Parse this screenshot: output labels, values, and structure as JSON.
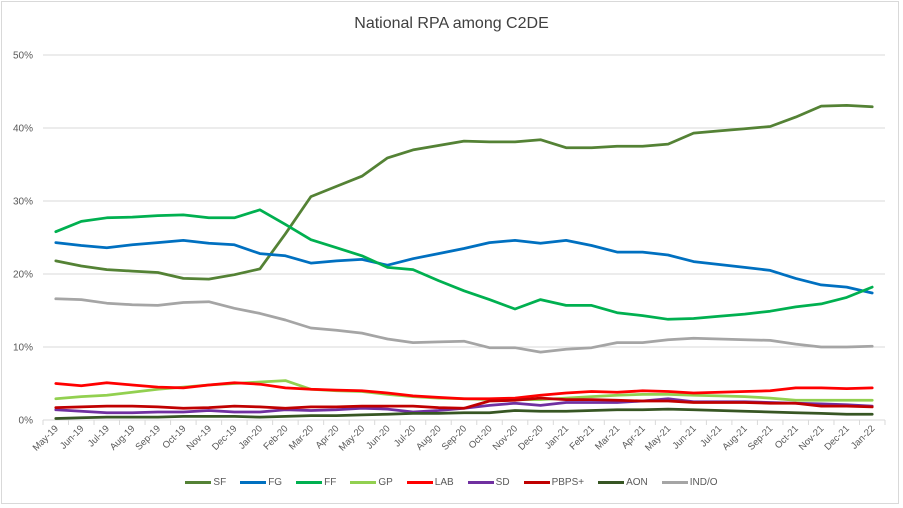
{
  "chart_data": {
    "type": "line",
    "title": "National RPA among C2DE",
    "xlabel": "",
    "ylabel": "",
    "ylim": [
      0,
      50
    ],
    "yticks": [
      "0%",
      "10%",
      "20%",
      "30%",
      "40%",
      "50%"
    ],
    "ytick_values": [
      0,
      10,
      20,
      30,
      40,
      50
    ],
    "grid": true,
    "legend_position": "bottom",
    "categories": [
      "May-19",
      "Jun-19",
      "Jul-19",
      "Aug-19",
      "Sep-19",
      "Oct-19",
      "Nov-19",
      "Dec-19",
      "Jan-20",
      "Feb-20",
      "Mar-20",
      "Apr-20",
      "May-20",
      "Jun-20",
      "Jul-20",
      "Aug-20",
      "Sep-20",
      "Oct-20",
      "Nov-20",
      "Dec-20",
      "Jan-21",
      "Feb-21",
      "Mar-21",
      "Apr-21",
      "May-21",
      "Jun-21",
      "Jul-21",
      "Aug-21",
      "Sep-21",
      "Oct-21",
      "Nov-21",
      "Dec-21",
      "Jan-22"
    ],
    "series": [
      {
        "name": "SF",
        "color": "#548235",
        "values": [
          21.8,
          21.1,
          20.6,
          20.4,
          20.2,
          19.4,
          19.3,
          19.9,
          20.7,
          25.5,
          30.6,
          32.0,
          33.4,
          35.9,
          37.0,
          37.6,
          38.2,
          38.1,
          38.1,
          38.4,
          37.3,
          37.3,
          37.5,
          37.5,
          37.8,
          39.3,
          39.6,
          39.9,
          40.2,
          41.5,
          43.0,
          43.1,
          42.9
        ]
      },
      {
        "name": "FG",
        "color": "#0070C0",
        "values": [
          24.3,
          23.9,
          23.6,
          24.0,
          24.3,
          24.6,
          24.2,
          24.0,
          22.8,
          22.5,
          21.5,
          21.8,
          22.0,
          21.2,
          22.1,
          22.8,
          23.5,
          24.3,
          24.6,
          24.2,
          24.6,
          23.9,
          23.0,
          23.0,
          22.6,
          21.7,
          21.3,
          20.9,
          20.5,
          19.4,
          18.5,
          18.2,
          17.4
        ]
      },
      {
        "name": "FF",
        "color": "#00B050",
        "values": [
          25.8,
          27.2,
          27.7,
          27.8,
          28.0,
          28.1,
          27.7,
          27.7,
          28.8,
          26.8,
          24.7,
          23.6,
          22.5,
          20.9,
          20.6,
          19.1,
          17.7,
          16.5,
          15.2,
          16.5,
          15.7,
          15.7,
          14.7,
          14.3,
          13.8,
          13.9,
          14.2,
          14.5,
          14.9,
          15.5,
          15.9,
          16.8,
          18.2
        ]
      },
      {
        "name": "GP",
        "color": "#92D050",
        "values": [
          2.9,
          3.2,
          3.4,
          3.8,
          4.2,
          4.5,
          4.8,
          5.0,
          5.2,
          5.4,
          4.2,
          4.0,
          3.9,
          3.5,
          3.2,
          3.0,
          2.9,
          2.8,
          2.8,
          2.8,
          3.0,
          3.2,
          3.4,
          3.5,
          3.5,
          3.4,
          3.3,
          3.2,
          3.0,
          2.7,
          2.7,
          2.7,
          2.7
        ]
      },
      {
        "name": "LAB",
        "color": "#FF0000",
        "values": [
          5.0,
          4.7,
          5.1,
          4.8,
          4.5,
          4.4,
          4.8,
          5.1,
          4.9,
          4.4,
          4.2,
          4.1,
          4.0,
          3.7,
          3.3,
          3.1,
          2.9,
          2.9,
          3.0,
          3.4,
          3.7,
          3.9,
          3.8,
          4.0,
          3.9,
          3.7,
          3.8,
          3.9,
          4.0,
          4.4,
          4.4,
          4.3,
          4.4
        ]
      },
      {
        "name": "SD",
        "color": "#7030A0",
        "values": [
          1.4,
          1.2,
          1.0,
          1.0,
          1.1,
          1.1,
          1.3,
          1.1,
          1.1,
          1.4,
          1.3,
          1.4,
          1.6,
          1.5,
          1.1,
          1.3,
          1.6,
          2.0,
          2.3,
          2.0,
          2.4,
          2.4,
          2.4,
          2.6,
          2.9,
          2.5,
          2.5,
          2.5,
          2.4,
          2.3,
          2.2,
          2.1,
          1.9
        ]
      },
      {
        "name": "PBPS+",
        "color": "#C00000",
        "values": [
          1.7,
          1.8,
          1.9,
          1.9,
          1.8,
          1.6,
          1.7,
          1.9,
          1.8,
          1.6,
          1.8,
          1.8,
          1.9,
          1.9,
          1.9,
          1.7,
          1.6,
          2.6,
          2.7,
          3.0,
          2.8,
          2.8,
          2.7,
          2.6,
          2.6,
          2.4,
          2.4,
          2.4,
          2.3,
          2.3,
          1.9,
          1.9,
          1.8
        ]
      },
      {
        "name": "AON",
        "color": "#375623",
        "values": [
          0.2,
          0.3,
          0.4,
          0.4,
          0.4,
          0.5,
          0.5,
          0.5,
          0.4,
          0.5,
          0.6,
          0.6,
          0.7,
          0.8,
          0.9,
          0.9,
          1.0,
          1.0,
          1.3,
          1.2,
          1.2,
          1.3,
          1.4,
          1.4,
          1.5,
          1.4,
          1.3,
          1.2,
          1.1,
          1.0,
          0.9,
          0.8,
          0.8
        ]
      },
      {
        "name": "IND/O",
        "color": "#A5A5A5",
        "values": [
          16.6,
          16.5,
          16.0,
          15.8,
          15.7,
          16.1,
          16.2,
          15.3,
          14.6,
          13.7,
          12.6,
          12.3,
          11.9,
          11.1,
          10.6,
          10.7,
          10.8,
          9.9,
          9.9,
          9.3,
          9.7,
          9.9,
          10.6,
          10.6,
          11.0,
          11.2,
          11.1,
          11.0,
          10.9,
          10.4,
          10.0,
          10.0,
          10.1
        ]
      }
    ]
  }
}
